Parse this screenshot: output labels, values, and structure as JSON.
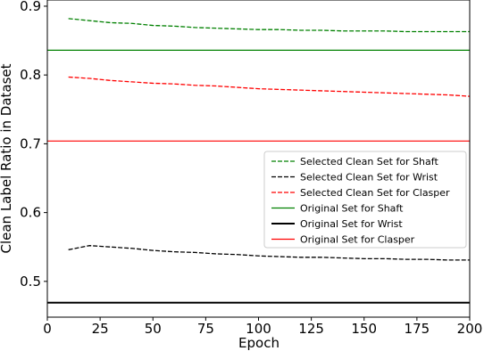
{
  "chart_data": {
    "type": "line",
    "xlabel": "Epoch",
    "ylabel": "Clean Label Ratio in Dataset",
    "xlim": [
      0,
      200
    ],
    "xticks": [
      0,
      25,
      50,
      75,
      100,
      125,
      150,
      175,
      200
    ],
    "ylim": [
      0.448,
      0.909
    ],
    "yticks": [
      0.5,
      0.6,
      0.7,
      0.8,
      0.9
    ],
    "legend": "center right",
    "series": [
      {
        "name": "Selected Clean Set for Shaft",
        "color": "#008000",
        "style": "dashed",
        "x": [
          10,
          20,
          30,
          40,
          50,
          60,
          70,
          80,
          90,
          100,
          110,
          120,
          130,
          140,
          150,
          160,
          170,
          180,
          190,
          200
        ],
        "values": [
          0.882,
          0.879,
          0.876,
          0.875,
          0.872,
          0.871,
          0.869,
          0.868,
          0.867,
          0.866,
          0.866,
          0.865,
          0.865,
          0.864,
          0.864,
          0.864,
          0.863,
          0.863,
          0.863,
          0.863
        ]
      },
      {
        "name": "Selected Clean Set for Wrist",
        "color": "#000000",
        "style": "dashed",
        "x": [
          10,
          20,
          30,
          40,
          50,
          60,
          70,
          80,
          90,
          100,
          110,
          120,
          130,
          140,
          150,
          160,
          170,
          180,
          190,
          200
        ],
        "values": [
          0.546,
          0.552,
          0.55,
          0.548,
          0.545,
          0.543,
          0.542,
          0.54,
          0.539,
          0.537,
          0.536,
          0.535,
          0.535,
          0.534,
          0.533,
          0.533,
          0.532,
          0.532,
          0.531,
          0.531
        ]
      },
      {
        "name": "Selected Clean Set for Clasper",
        "color": "#ff0000",
        "style": "dashed",
        "x": [
          10,
          20,
          30,
          40,
          50,
          60,
          70,
          80,
          90,
          100,
          110,
          120,
          130,
          140,
          150,
          160,
          170,
          180,
          190,
          200
        ],
        "values": [
          0.797,
          0.795,
          0.792,
          0.79,
          0.788,
          0.787,
          0.785,
          0.784,
          0.782,
          0.78,
          0.779,
          0.778,
          0.777,
          0.776,
          0.775,
          0.774,
          0.773,
          0.772,
          0.771,
          0.769
        ]
      },
      {
        "name": "Original Set for Shaft",
        "color": "#008000",
        "style": "solid",
        "x": [
          0,
          200
        ],
        "values": [
          0.836,
          0.836
        ]
      },
      {
        "name": "Original Set for Wrist",
        "color": "#000000",
        "style": "solid",
        "x": [
          0,
          200
        ],
        "values": [
          0.469,
          0.469
        ]
      },
      {
        "name": "Original Set for Clasper",
        "color": "#ff0000",
        "style": "solid",
        "x": [
          0,
          200
        ],
        "values": [
          0.704,
          0.704
        ]
      }
    ]
  }
}
